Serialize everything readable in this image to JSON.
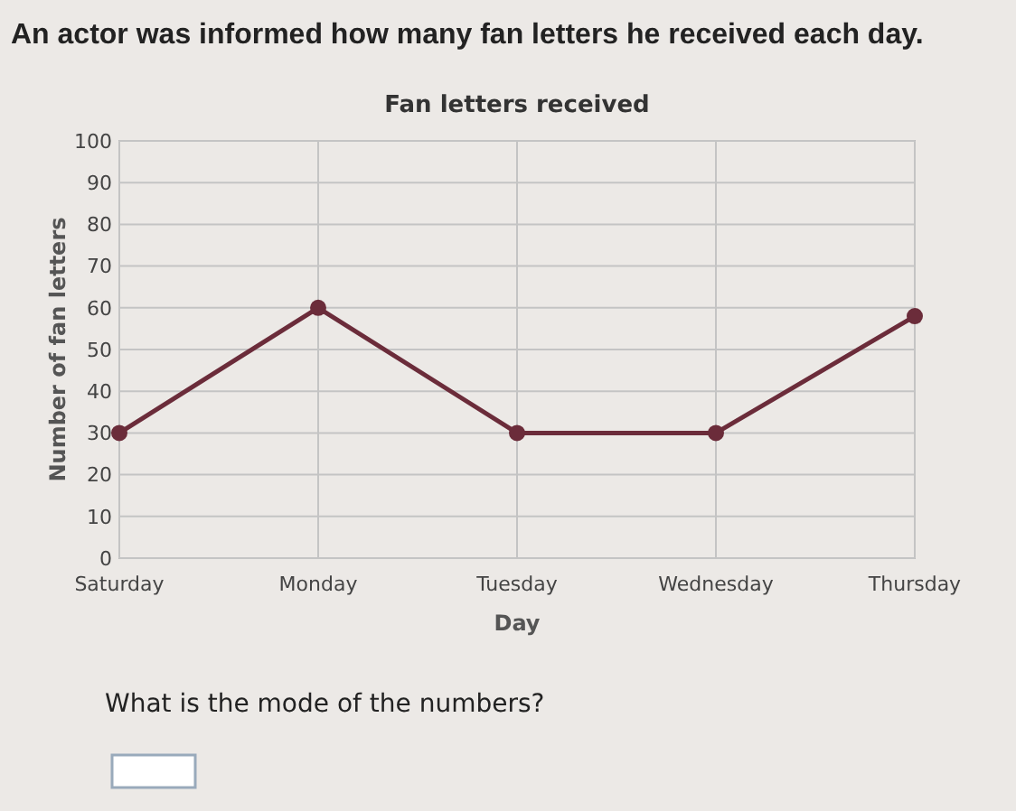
{
  "chart_data": {
    "type": "line",
    "title": "Fan letters received",
    "subtitle": "An actor was informed how many fan letters he received each day.",
    "xlabel": "Day",
    "ylabel": "Number of fan letters",
    "categories": [
      "Saturday",
      "Monday",
      "Tuesday",
      "Wednesday",
      "Thursday"
    ],
    "series": [
      {
        "color": "#6b2c3a",
        "values": [
          30,
          60,
          30,
          30,
          58
        ]
      }
    ],
    "ylim": [
      0,
      100
    ],
    "yticks": [
      0,
      10,
      20,
      30,
      40,
      50,
      60,
      70,
      80,
      90,
      100
    ],
    "grid": true,
    "marker": "circle",
    "annotations": [
      "What is the mode of the numbers?"
    ]
  }
}
